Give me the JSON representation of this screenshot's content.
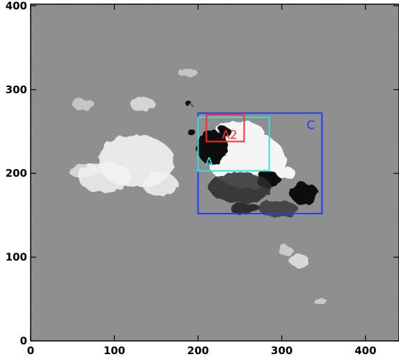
{
  "figure": {
    "x_ticks": [
      "0",
      "100",
      "200",
      "300",
      "400"
    ],
    "y_ticks": [
      "0",
      "100",
      "200",
      "300",
      "400"
    ],
    "x_range": [
      0,
      440
    ],
    "y_range": [
      0,
      402
    ],
    "background": "magnetogram-grayscale"
  },
  "regions": [
    {
      "label": "C",
      "color": "#1f3bff",
      "x": [
        200,
        348
      ],
      "y": [
        152,
        272
      ]
    },
    {
      "label": "A",
      "color": "#36e0e0",
      "x": [
        200,
        285
      ],
      "y": [
        203,
        267
      ]
    },
    {
      "label": "A2",
      "color": "#ff2a2a",
      "x": [
        210,
        255
      ],
      "y": [
        238,
        270
      ]
    }
  ]
}
